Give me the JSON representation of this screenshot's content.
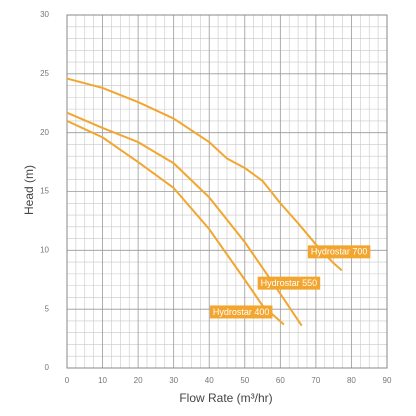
{
  "chart_data": {
    "type": "line",
    "x_label": "Flow Rate (m³/hr)",
    "y_label": "Head (m)",
    "xlim": [
      0,
      90
    ],
    "xticks": [
      0,
      10,
      20,
      30,
      40,
      50,
      60,
      70,
      80,
      90
    ],
    "ylim": [
      0,
      30
    ],
    "yticks": [
      0,
      5,
      10,
      15,
      20,
      25,
      30
    ],
    "grid": true,
    "series": [
      {
        "name": "Hydrostar 700",
        "color": "#f2a630",
        "x": [
          0,
          10,
          20,
          30,
          40,
          45,
          50,
          55,
          60,
          65,
          70,
          75,
          77.3
        ],
        "values": [
          24.6,
          23.8,
          22.6,
          21.2,
          19.2,
          17.8,
          17.0,
          15.9,
          14.0,
          12.3,
          10.5,
          8.9,
          8.3
        ]
      },
      {
        "name": "Hydrostar 550",
        "color": "#f2a630",
        "x": [
          0,
          10,
          20,
          30,
          40,
          50,
          55,
          60,
          66
        ],
        "values": [
          21.7,
          20.4,
          19.2,
          17.4,
          14.5,
          10.7,
          8.5,
          6.3,
          3.6
        ]
      },
      {
        "name": "Hydrostar 400",
        "color": "#f2a630",
        "x": [
          0,
          10,
          20,
          30,
          40,
          50,
          55,
          61
        ],
        "values": [
          21.0,
          19.6,
          17.5,
          15.3,
          11.8,
          7.5,
          5.3,
          3.7
        ]
      }
    ]
  }
}
